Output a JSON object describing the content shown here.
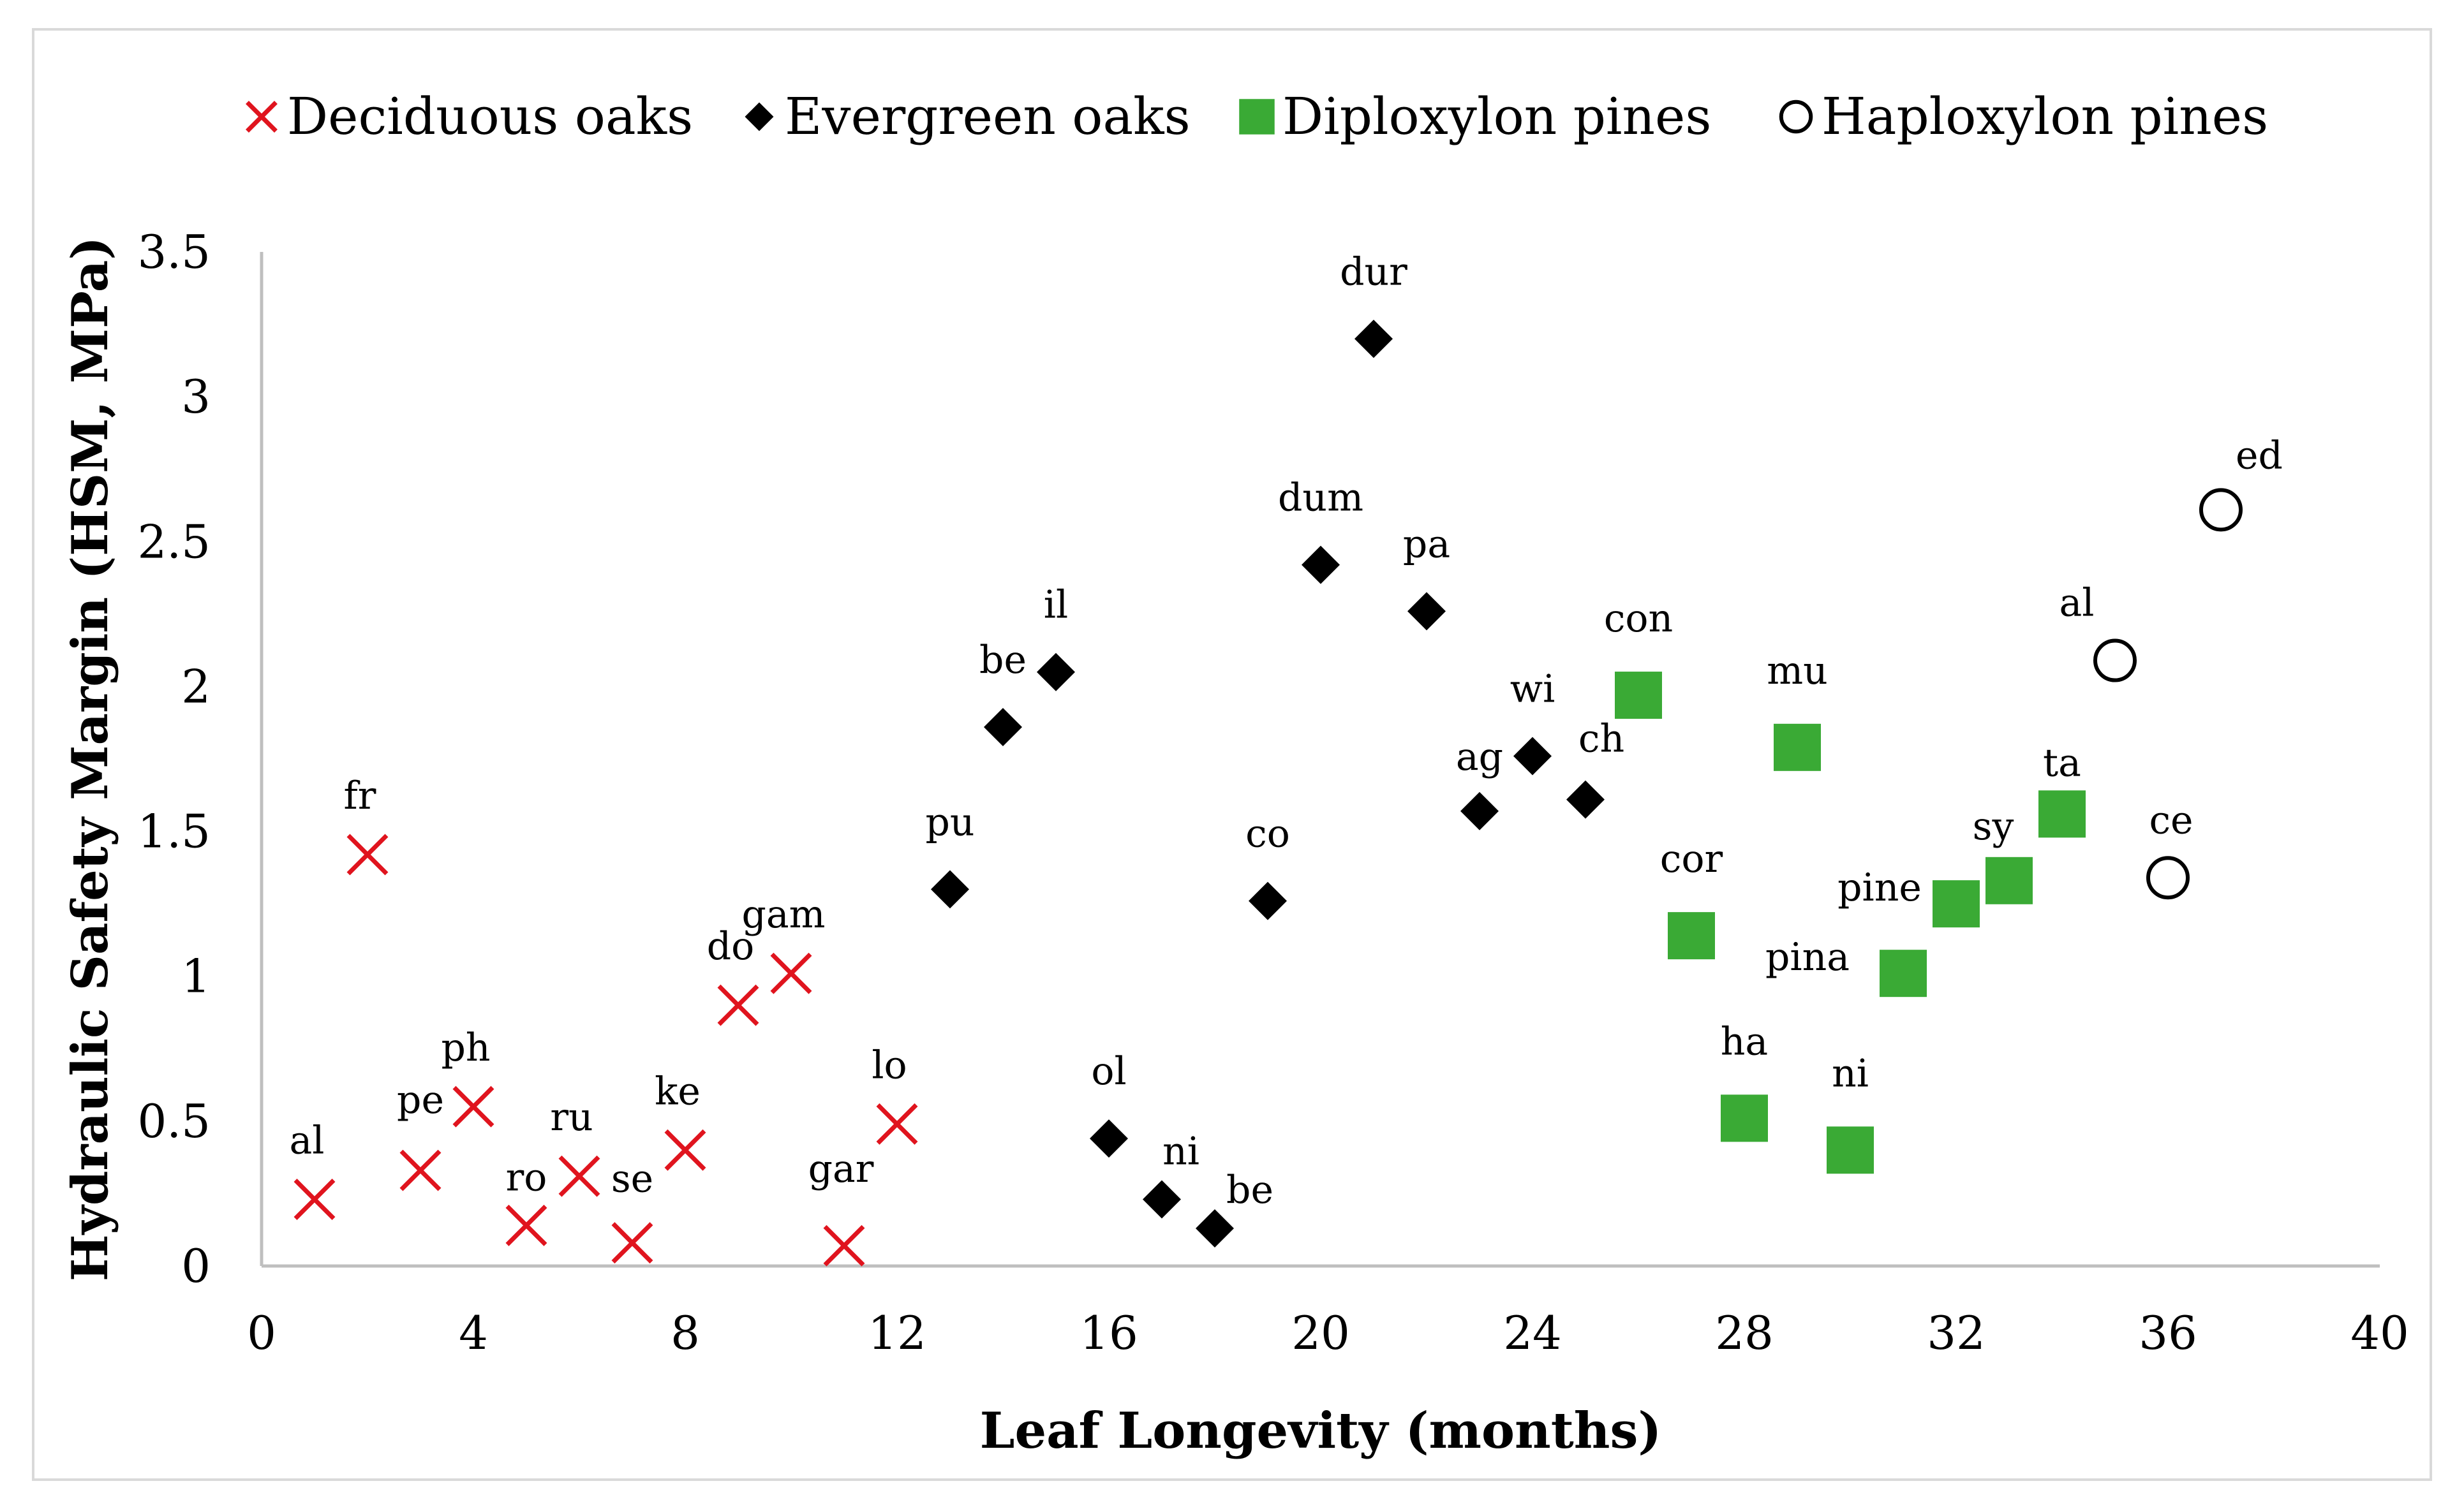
{
  "chart_data": {
    "type": "scatter",
    "xlabel": "Leaf Longevity (months)",
    "ylabel": "Hydraulic Safety Margin (HSM, MPa)",
    "xlim": [
      0,
      40
    ],
    "ylim": [
      0,
      3.5
    ],
    "xticks": [
      "0",
      "4",
      "8",
      "12",
      "16",
      "20",
      "24",
      "28",
      "32",
      "36",
      "40"
    ],
    "yticks": [
      "0",
      "0.5",
      "1",
      "1.5",
      "2",
      "2.5",
      "3",
      "3.5"
    ],
    "grid": false,
    "legend_position": "top",
    "series": [
      {
        "name": "Deciduous oaks",
        "marker": "x",
        "color": "#e0141e",
        "points": [
          {
            "label": "al",
            "x": 1,
            "y": 0.23
          },
          {
            "label": "fr",
            "x": 2,
            "y": 1.42
          },
          {
            "label": "pe",
            "x": 3,
            "y": 0.33
          },
          {
            "label": "ph",
            "x": 4,
            "y": 0.55
          },
          {
            "label": "ro",
            "x": 5,
            "y": 0.14
          },
          {
            "label": "ru",
            "x": 6,
            "y": 0.31
          },
          {
            "label": "se",
            "x": 7,
            "y": 0.08
          },
          {
            "label": "ke",
            "x": 8,
            "y": 0.4
          },
          {
            "label": "do",
            "x": 9,
            "y": 0.9
          },
          {
            "label": "gam",
            "x": 10,
            "y": 1.01
          },
          {
            "label": "gar",
            "x": 11,
            "y": 0.07
          },
          {
            "label": "lo",
            "x": 12,
            "y": 0.49
          }
        ]
      },
      {
        "name": "Evergreen oaks",
        "marker": "diamond",
        "color": "#000000",
        "points": [
          {
            "label": "pu",
            "x": 13,
            "y": 1.3
          },
          {
            "label": "be",
            "x": 14,
            "y": 1.86
          },
          {
            "label": "il",
            "x": 15,
            "y": 2.05
          },
          {
            "label": "ol",
            "x": 16,
            "y": 0.44
          },
          {
            "label": "ni",
            "x": 17,
            "y": 0.23
          },
          {
            "label": "be",
            "x": 18,
            "y": 0.13
          },
          {
            "label": "co",
            "x": 19,
            "y": 1.26
          },
          {
            "label": "dum",
            "x": 20,
            "y": 2.42
          },
          {
            "label": "dur",
            "x": 21,
            "y": 3.2
          },
          {
            "label": "pa",
            "x": 22,
            "y": 2.26
          },
          {
            "label": "ag",
            "x": 23,
            "y": 1.57
          },
          {
            "label": "wi",
            "x": 24,
            "y": 1.76
          },
          {
            "label": "ch",
            "x": 25,
            "y": 1.61
          }
        ]
      },
      {
        "name": "Diploxylon pines",
        "marker": "square",
        "color": "#3aaa35",
        "points": [
          {
            "label": "con",
            "x": 26,
            "y": 1.97
          },
          {
            "label": "cor",
            "x": 27,
            "y": 1.14
          },
          {
            "label": "ha",
            "x": 28,
            "y": 0.51
          },
          {
            "label": "mu",
            "x": 29,
            "y": 1.79
          },
          {
            "label": "ni",
            "x": 30,
            "y": 0.4
          },
          {
            "label": "pina",
            "x": 31,
            "y": 1.01
          },
          {
            "label": "pine",
            "x": 32,
            "y": 1.25
          },
          {
            "label": "sy",
            "x": 33,
            "y": 1.33
          },
          {
            "label": "ta",
            "x": 34,
            "y": 1.56
          }
        ]
      },
      {
        "name": "Haploxylon pines",
        "marker": "circle",
        "color": "#000000",
        "points": [
          {
            "label": "al",
            "x": 35,
            "y": 2.09
          },
          {
            "label": "ce",
            "x": 36,
            "y": 1.34
          },
          {
            "label": "ed",
            "x": 37,
            "y": 2.61
          }
        ]
      }
    ]
  }
}
